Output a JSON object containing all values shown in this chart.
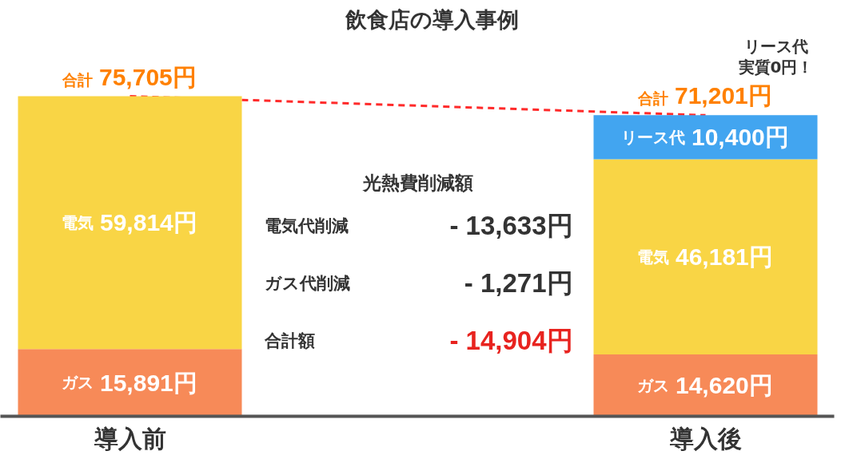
{
  "chart_data": {
    "type": "bar",
    "title": "飲食店の導入事例",
    "categories": [
      "導入前",
      "導入後"
    ],
    "stacked": true,
    "tick_labels": "x",
    "series": [
      {
        "name": "ガス",
        "color": "#f78a58",
        "values": [
          15891,
          14620
        ],
        "value_labels": [
          "15,891円",
          "14,620円"
        ]
      },
      {
        "name": "電気",
        "color": "#f9d545",
        "values": [
          59814,
          46181
        ],
        "value_labels": [
          "59,814円",
          "46,181円"
        ]
      },
      {
        "name": "リース代",
        "color": "#42a5f0",
        "values": [
          null,
          10400
        ],
        "value_labels": [
          null,
          "10,400円"
        ]
      },
      {
        "type": "line",
        "color": "#ff2a2a",
        "values": [
          75705,
          71201
        ],
        "line_style": "dashed"
      }
    ],
    "totals": [
      "合計 75,705円",
      "合計 71,201円"
    ],
    "annotations": [
      "リース代",
      "実質0円！",
      "光熱費削減額",
      "電気代削減",
      "- 13,633円",
      "ガス代削減",
      "- 1,271円",
      "合計額",
      "- 14,904円"
    ]
  }
}
